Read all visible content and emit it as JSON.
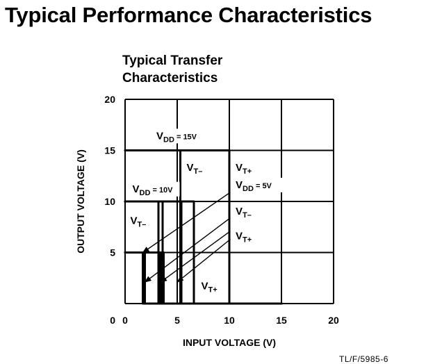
{
  "page_title": "Typical Performance Characteristics",
  "figure_code": "TL/F/5985-6",
  "chart_data": {
    "type": "line",
    "title": "Typical Transfer Characteristics",
    "title_lines": [
      "Typical Transfer",
      "Characteristics"
    ],
    "xlabel": "INPUT VOLTAGE (V)",
    "ylabel": "OUTPUT VOLTAGE (V)",
    "xlim": [
      0,
      20
    ],
    "ylim": [
      0,
      20
    ],
    "x_ticks": [
      0,
      5,
      10,
      15,
      20
    ],
    "y_ticks": [
      0,
      5,
      10,
      15,
      20
    ],
    "x_tick_labels": [
      "0",
      "5",
      "10",
      "15",
      "20"
    ],
    "y_tick_labels": [
      "0",
      "5",
      "10",
      "15",
      "20"
    ],
    "grid": true,
    "series": [
      {
        "x": [
          0,
          5.3,
          5.3,
          10,
          10,
          15
        ],
        "y": [
          15,
          15,
          0,
          0,
          0,
          0
        ]
      },
      {
        "x": [
          0,
          10,
          10,
          15
        ],
        "y": [
          15,
          15,
          0,
          0
        ]
      },
      {
        "x": [
          0,
          3.2,
          3.2,
          15
        ],
        "y": [
          10,
          10,
          0,
          0
        ]
      },
      {
        "x": [
          0,
          3.6,
          3.6,
          15
        ],
        "y": [
          10,
          10,
          0,
          0
        ]
      },
      {
        "x": [
          0,
          5.4,
          5.4,
          15
        ],
        "y": [
          10,
          10,
          0,
          0
        ]
      },
      {
        "x": [
          0,
          6.6,
          6.6,
          15
        ],
        "y": [
          10,
          10,
          0,
          0
        ]
      },
      {
        "x": [
          0,
          1.7,
          1.7,
          15
        ],
        "y": [
          5,
          5,
          0,
          0
        ]
      },
      {
        "x": [
          0,
          1.9,
          1.9,
          15
        ],
        "y": [
          5,
          5,
          0,
          0
        ]
      },
      {
        "x": [
          0,
          3.4,
          3.4,
          15
        ],
        "y": [
          5,
          5,
          0,
          0
        ]
      },
      {
        "x": [
          0,
          3.7,
          3.7,
          15
        ],
        "y": [
          5,
          5,
          0,
          0
        ]
      }
    ],
    "annotations": [
      {
        "main": "V",
        "sub": "DD",
        "suffix": " = 15V",
        "x": 3.0,
        "y": 16.1
      },
      {
        "main": "V",
        "sub": "T–",
        "suffix": "",
        "x": 5.9,
        "y": 13.0
      },
      {
        "main": "V",
        "sub": "T+",
        "suffix": "",
        "x": 10.6,
        "y": 13.0
      },
      {
        "main": "V",
        "sub": "DD",
        "suffix": " = 10V",
        "x": 0.7,
        "y": 10.9
      },
      {
        "main": "V",
        "sub": "DD",
        "suffix": " = 5V",
        "x": 10.6,
        "y": 11.3
      },
      {
        "main": "V",
        "sub": "T–",
        "suffix": "",
        "x": 10.6,
        "y": 8.7
      },
      {
        "main": "V",
        "sub": "T–",
        "suffix": "",
        "x": 0.5,
        "y": 7.8
      },
      {
        "main": "V",
        "sub": "T+",
        "suffix": "",
        "x": 10.6,
        "y": 6.3
      },
      {
        "main": "V",
        "sub": "T+",
        "suffix": "",
        "x": 7.3,
        "y": 1.4
      }
    ],
    "arrows": [
      {
        "from": [
          10.1,
          10.9
        ],
        "to": [
          1.7,
          5.0
        ]
      },
      {
        "from": [
          10.1,
          8.4
        ],
        "to": [
          1.9,
          2.1
        ]
      },
      {
        "from": [
          10.1,
          7.1
        ],
        "to": [
          3.4,
          2.1
        ]
      },
      {
        "from": [
          10.1,
          6.3
        ],
        "to": [
          5.0,
          2.1
        ]
      }
    ]
  }
}
